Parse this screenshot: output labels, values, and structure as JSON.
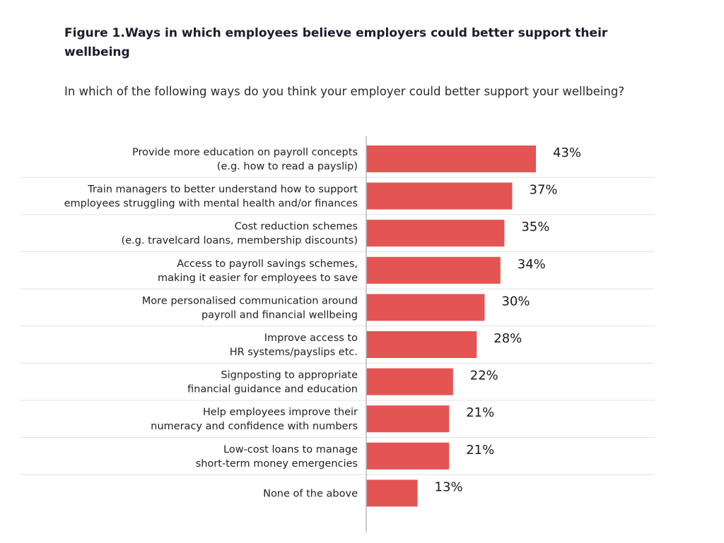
{
  "header": {
    "title": "Figure 1.Ways in which employees believe employers could better support their wellbeing",
    "subtitle": "In which of the following ways do you think your employer could better support your wellbeing?"
  },
  "chart_data": {
    "type": "bar",
    "orientation": "horizontal",
    "title": "Figure 1.Ways in which employees believe employers could better support their wellbeing",
    "subtitle": "In which of the following ways do you think your employer could better support your wellbeing?",
    "categories": [
      [
        "Provide more education on payroll concepts",
        "(e.g. how to read a payslip)"
      ],
      [
        "Train managers to better understand how to support",
        "employees struggling with mental health and/or finances"
      ],
      [
        "Cost reduction schemes",
        "(e.g. travelcard loans, membership discounts)"
      ],
      [
        "Access to payroll savings schemes,",
        "making it easier for employees to save"
      ],
      [
        "More personalised communication around",
        "payroll and financial wellbeing"
      ],
      [
        "Improve access to",
        "HR systems/payslips etc."
      ],
      [
        "Signposting to appropriate",
        "financial guidance and education"
      ],
      [
        "Help employees improve their",
        "numeracy and confidence with numbers"
      ],
      [
        "Low-cost loans to manage",
        "short-term money emergencies"
      ],
      [
        "None of the above"
      ]
    ],
    "values": [
      43,
      37,
      35,
      34,
      30,
      28,
      22,
      21,
      21,
      13
    ],
    "value_labels": [
      "43%",
      "37%",
      "35%",
      "34%",
      "30%",
      "28%",
      "22%",
      "21%",
      "21%",
      "13%"
    ],
    "unit": "%",
    "xlim": [
      0,
      100
    ],
    "grid": false,
    "legend": "none",
    "bar_color": "#e35552",
    "axis_color": "#b8b8c4",
    "separator_color": "#e2e2e2"
  }
}
